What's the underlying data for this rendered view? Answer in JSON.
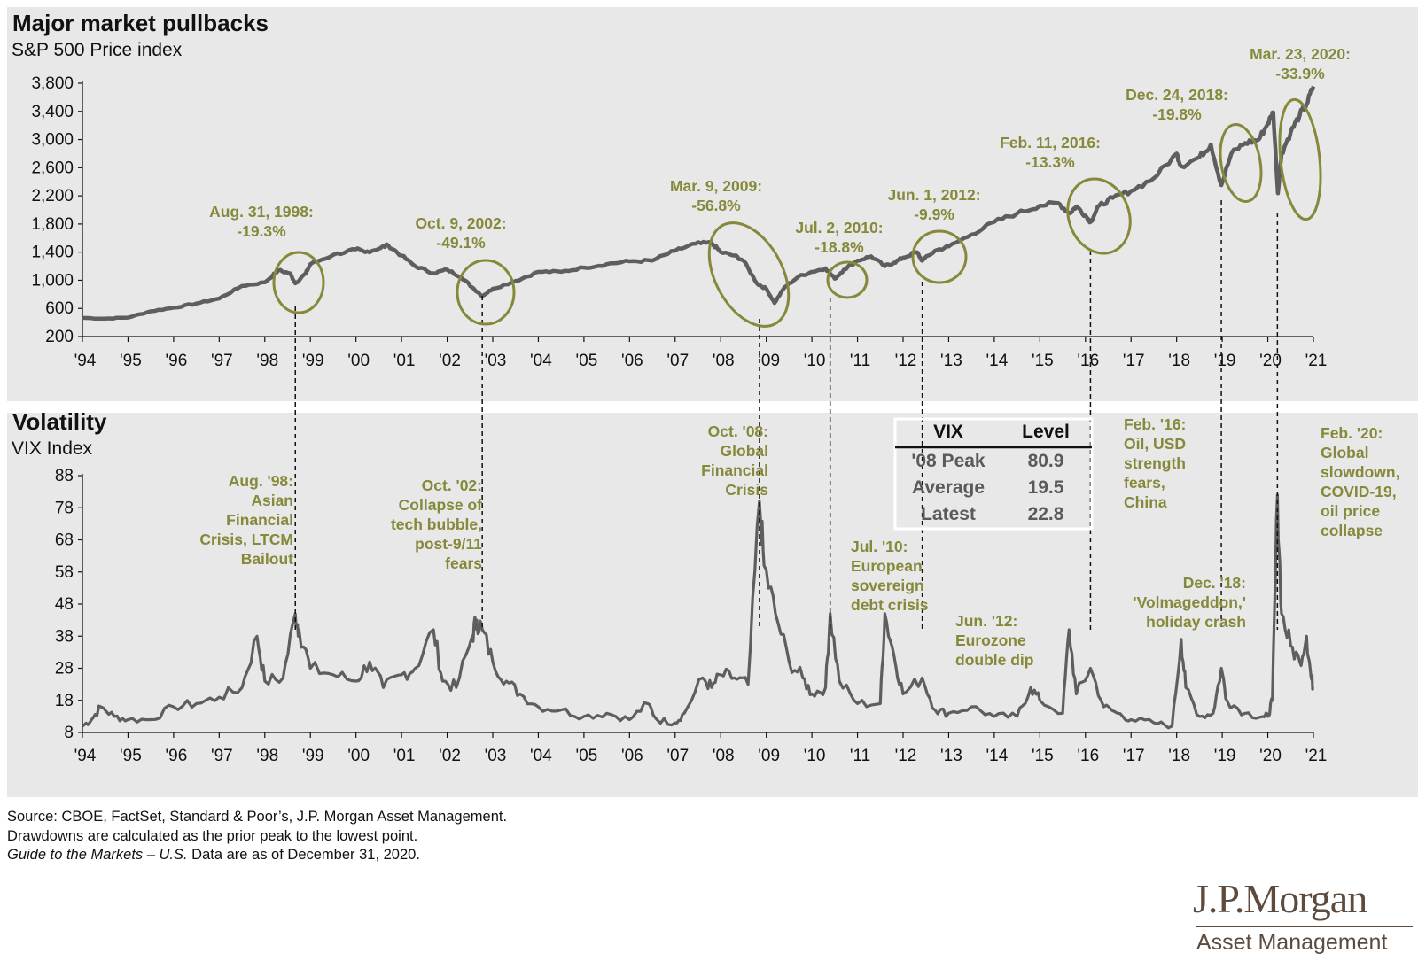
{
  "chart_data": [
    {
      "type": "line",
      "title": "Major market pullbacks",
      "subtitle": "S&P 500 Price index",
      "xlim": [
        1994,
        2021
      ],
      "ylim": [
        200,
        3800
      ],
      "y_ticks": [
        "3,800",
        "3,400",
        "3,000",
        "2,600",
        "2,200",
        "1,800",
        "1,400",
        "1,000",
        "600",
        "200"
      ],
      "y_tick_values": [
        3800,
        3400,
        3000,
        2600,
        2200,
        1800,
        1400,
        1000,
        600,
        200
      ],
      "x_ticks": [
        "'94",
        "'95",
        "'96",
        "'97",
        "'98",
        "'99",
        "'00",
        "'01",
        "'02",
        "'03",
        "'04",
        "'05",
        "'06",
        "'07",
        "'08",
        "'09",
        "'10",
        "'11",
        "'12",
        "'13",
        "'14",
        "'15",
        "'16",
        "'17",
        "'18",
        "'19",
        "'20",
        "'21"
      ],
      "series": [
        {
          "name": "S&P 500",
          "color": "#5e5e5e",
          "x": [
            1994.0,
            1994.5,
            1995.0,
            1995.5,
            1996.0,
            1996.5,
            1997.0,
            1997.5,
            1998.0,
            1998.3,
            1998.55,
            1998.67,
            1998.9,
            1999.0,
            1999.5,
            2000.0,
            2000.2,
            2000.5,
            2000.7,
            2001.0,
            2001.3,
            2001.7,
            2002.0,
            2002.3,
            2002.55,
            2002.77,
            2003.0,
            2003.5,
            2004.0,
            2004.5,
            2005.0,
            2005.5,
            2006.0,
            2006.5,
            2007.0,
            2007.45,
            2007.8,
            2008.0,
            2008.3,
            2008.5,
            2008.8,
            2009.0,
            2009.18,
            2009.4,
            2009.7,
            2010.0,
            2010.3,
            2010.5,
            2010.7,
            2011.0,
            2011.3,
            2011.6,
            2011.8,
            2012.0,
            2012.3,
            2012.42,
            2012.7,
            2013.0,
            2013.5,
            2014.0,
            2014.5,
            2015.0,
            2015.4,
            2015.65,
            2015.8,
            2016.0,
            2016.11,
            2016.3,
            2016.6,
            2017.0,
            2017.5,
            2018.0,
            2018.1,
            2018.5,
            2018.75,
            2018.98,
            2019.2,
            2019.5,
            2019.8,
            2020.0,
            2020.12,
            2020.22,
            2020.3,
            2020.5,
            2020.7,
            2020.85,
            2021.0
          ],
          "y": [
            466,
            455,
            470,
            560,
            610,
            670,
            740,
            920,
            970,
            1140,
            1100,
            957,
            1100,
            1229,
            1360,
            1440,
            1400,
            1450,
            1500,
            1350,
            1200,
            1100,
            1150,
            1050,
            900,
            777,
            880,
            990,
            1120,
            1120,
            1180,
            1230,
            1270,
            1280,
            1420,
            1520,
            1530,
            1400,
            1350,
            1280,
            950,
            880,
            677,
            900,
            1050,
            1120,
            1170,
            1022,
            1150,
            1280,
            1340,
            1200,
            1250,
            1320,
            1400,
            1278,
            1420,
            1480,
            1650,
            1830,
            1950,
            2060,
            2100,
            1950,
            2050,
            1920,
            1829,
            2060,
            2170,
            2270,
            2450,
            2800,
            2620,
            2750,
            2930,
            2351,
            2800,
            2950,
            3000,
            3230,
            3386,
            2237,
            2800,
            3100,
            3350,
            3500,
            3756
          ]
        }
      ],
      "annotations": [
        {
          "label": [
            "Aug. 31, 1998:",
            "-19.3%"
          ],
          "date": 1998.67
        },
        {
          "label": [
            "Oct. 9, 2002:",
            "-49.1%"
          ],
          "date": 2002.77
        },
        {
          "label": [
            "Mar. 9, 2009:",
            "-56.8%"
          ],
          "date": 2009.18
        },
        {
          "label": [
            "Jul. 2, 2010:",
            "-18.8%"
          ],
          "date": 2010.5
        },
        {
          "label": [
            "Jun. 1, 2012:",
            "-9.9%"
          ],
          "date": 2012.42
        },
        {
          "label": [
            "Feb. 11, 2016:",
            "-13.3%"
          ],
          "date": 2016.11
        },
        {
          "label": [
            "Dec. 24, 2018:",
            "-19.8%"
          ],
          "date": 2018.98
        },
        {
          "label": [
            "Mar. 23, 2020:",
            "-33.9%"
          ],
          "date": 2020.22
        }
      ]
    },
    {
      "type": "line",
      "title": "Volatility",
      "subtitle": "VIX Index",
      "xlim": [
        1994,
        2021
      ],
      "ylim": [
        8,
        88
      ],
      "y_ticks": [
        "88",
        "78",
        "68",
        "58",
        "48",
        "38",
        "28",
        "18",
        "8"
      ],
      "y_tick_values": [
        88,
        78,
        68,
        58,
        48,
        38,
        28,
        18,
        8
      ],
      "x_ticks": [
        "'94",
        "'95",
        "'96",
        "'97",
        "'98",
        "'99",
        "'00",
        "'01",
        "'02",
        "'03",
        "'04",
        "'05",
        "'06",
        "'07",
        "'08",
        "'09",
        "'10",
        "'11",
        "'12",
        "'13",
        "'14",
        "'15",
        "'16",
        "'17",
        "'18",
        "'19",
        "'20",
        "'21"
      ],
      "series": [
        {
          "name": "VIX",
          "color": "#5e5e5e",
          "x": [
            1994.0,
            1994.2,
            1994.4,
            1994.7,
            1995.0,
            1995.5,
            1996.0,
            1996.5,
            1997.0,
            1997.5,
            1997.83,
            1998.0,
            1998.4,
            1998.67,
            1998.75,
            1999.0,
            1999.5,
            2000.0,
            2000.3,
            2000.6,
            2001.0,
            2001.3,
            2001.7,
            2001.9,
            2002.2,
            2002.55,
            2002.65,
            2002.77,
            2003.0,
            2003.3,
            2003.6,
            2004.0,
            2004.5,
            2005.0,
            2005.5,
            2006.0,
            2006.4,
            2006.6,
            2007.0,
            2007.2,
            2007.6,
            2007.8,
            2008.0,
            2008.3,
            2008.6,
            2008.85,
            2008.95,
            2009.2,
            2009.5,
            2009.8,
            2010.0,
            2010.3,
            2010.4,
            2010.6,
            2011.0,
            2011.5,
            2011.6,
            2011.8,
            2012.0,
            2012.42,
            2012.7,
            2013.0,
            2013.5,
            2014.0,
            2014.5,
            2014.8,
            2015.0,
            2015.5,
            2015.64,
            2015.8,
            2016.11,
            2016.4,
            2016.7,
            2017.0,
            2017.5,
            2017.9,
            2018.1,
            2018.2,
            2018.5,
            2018.8,
            2018.98,
            2019.1,
            2019.5,
            2019.9,
            2020.0,
            2020.1,
            2020.21,
            2020.3,
            2020.5,
            2020.7,
            2020.85,
            2020.95,
            2021.0
          ],
          "y": [
            10,
            12,
            16,
            13,
            12,
            12,
            16,
            17,
            19,
            22,
            38,
            24,
            25,
            45,
            40,
            28,
            26,
            24,
            30,
            22,
            26,
            28,
            40,
            24,
            22,
            38,
            43,
            40,
            30,
            24,
            20,
            16,
            15,
            13,
            14,
            12,
            17,
            12,
            11,
            14,
            25,
            22,
            26,
            25,
            23,
            80,
            60,
            45,
            30,
            25,
            20,
            22,
            45,
            24,
            17,
            17,
            45,
            32,
            20,
            25,
            15,
            14,
            16,
            13,
            13,
            22,
            18,
            14,
            40,
            20,
            28,
            16,
            14,
            12,
            11,
            10,
            37,
            22,
            13,
            14,
            28,
            18,
            14,
            13,
            13,
            18,
            82,
            45,
            35,
            30,
            38,
            25,
            22
          ]
        }
      ],
      "annotations": [
        {
          "label": [
            "Aug. '98:",
            "Asian",
            "Financial",
            "Crisis, LTCM",
            "Bailout"
          ],
          "date": 1998.67
        },
        {
          "label": [
            "Oct. '02:",
            "Collapse of",
            "tech bubble,",
            "post-9/11",
            "fears"
          ],
          "date": 2002.77
        },
        {
          "label": [
            "Oct. '08:",
            "Global",
            "Financial",
            "Crisis"
          ],
          "date": 2008.85
        },
        {
          "label": [
            "Jul. '10:",
            "European",
            "sovereign",
            "debt crisis"
          ],
          "date": 2010.4
        },
        {
          "label": [
            "Jun. '12:",
            "Eurozone",
            "double dip"
          ],
          "date": 2012.42
        },
        {
          "label": [
            "Feb. '16:",
            "Oil, USD",
            "strength",
            "fears,",
            "China"
          ],
          "date": 2016.11
        },
        {
          "label": [
            "Dec. '18:",
            "'Volmageddon,'",
            "holiday crash"
          ],
          "date": 2018.98
        },
        {
          "label": [
            "Feb. '20:",
            "Global",
            "slowdown,",
            "COVID-19,",
            "oil price",
            "collapse"
          ],
          "date": 2020.21
        }
      ],
      "table": {
        "headers": [
          "VIX",
          "Level"
        ],
        "rows": [
          [
            "'08 Peak",
            "80.9"
          ],
          [
            "Average",
            "19.5"
          ],
          [
            "Latest",
            "22.8"
          ]
        ]
      }
    }
  ],
  "colors": {
    "accent": "#86893a",
    "line": "#5e5e5e",
    "panel": "#e8e8e8",
    "logo": "#5d4b3e"
  },
  "footer": {
    "line1": "Source: CBOE, FactSet, Standard & Poor’s, J.P. Morgan Asset Management.",
    "line2": "Drawdowns are calculated as the prior peak to the lowest point.",
    "line3_italic": "Guide to the Markets – U.S.",
    "line3_rest": " Data are as of December 31, 2020."
  },
  "logo": {
    "name": "J.P.Morgan",
    "sub": "Asset Management"
  }
}
